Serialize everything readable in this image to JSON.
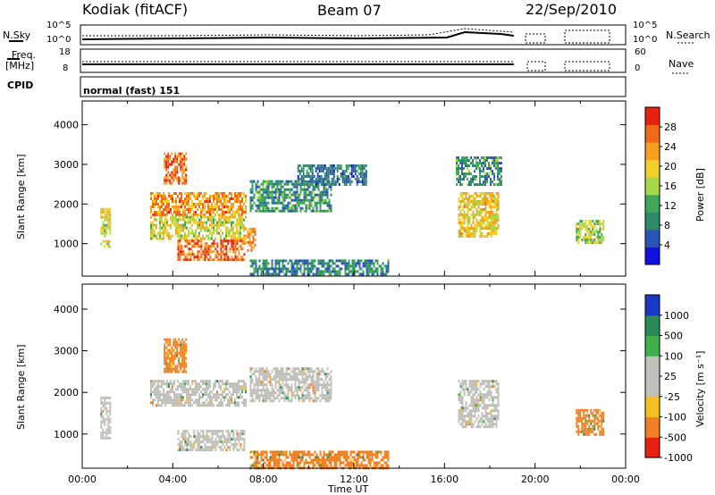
{
  "header": {
    "title": "Kodiak (fitACF)",
    "beam": "Beam 07",
    "date": "22/Sep/2010"
  },
  "top_panels": {
    "nsky_label": "N.Sky",
    "nsearch_label": "N.Search",
    "noise_ticks_left": [
      "10^5",
      "10^0"
    ],
    "noise_ticks_right": [
      "10^5",
      "10^0"
    ],
    "freq_label": "Freq.",
    "freq_unit": "[MHz]",
    "freq_ticks": [
      "18",
      "8"
    ],
    "nave_label": "Nave",
    "nave_ticks": [
      "60",
      "0"
    ],
    "cpid_label": "CPID",
    "cpid_value": "normal (fast) 151"
  },
  "chart_data": [
    {
      "type": "heatmap",
      "name": "power-panel",
      "ylabel": "Slant Range [km]",
      "yticks": [
        "4000",
        "3000",
        "2000",
        "1000"
      ],
      "ylim": [
        180,
        4600
      ],
      "xlabel": "",
      "xlim": [
        0,
        24
      ],
      "colorbar": {
        "label": "Power [dB]",
        "ticks": [
          "28",
          "24",
          "20",
          "16",
          "12",
          "8",
          "4"
        ],
        "range": [
          0,
          32
        ],
        "colors": [
          "#1010e0",
          "#2a55b8",
          "#2f8a6a",
          "#3ea85a",
          "#a8d848",
          "#f2d028",
          "#f7a020",
          "#f06a18",
          "#e82010"
        ]
      },
      "regions": [
        {
          "t0": 0.8,
          "t1": 1.2,
          "r0": 900,
          "r1": 1900,
          "value": 18
        },
        {
          "t0": 3.6,
          "t1": 4.6,
          "r0": 2500,
          "r1": 3300,
          "value": 27
        },
        {
          "t0": 3.0,
          "t1": 7.2,
          "r0": 1700,
          "r1": 2300,
          "value": 24
        },
        {
          "t0": 3.0,
          "t1": 7.2,
          "r0": 1100,
          "r1": 1700,
          "value": 18
        },
        {
          "t0": 4.2,
          "t1": 7.2,
          "r0": 600,
          "r1": 1100,
          "value": 26
        },
        {
          "t0": 7.2,
          "t1": 7.6,
          "r0": 800,
          "r1": 1400,
          "value": 24
        },
        {
          "t0": 7.4,
          "t1": 11.0,
          "r0": 1800,
          "r1": 2600,
          "value": 10
        },
        {
          "t0": 9.5,
          "t1": 12.5,
          "r0": 2500,
          "r1": 3000,
          "value": 8
        },
        {
          "t0": 7.4,
          "t1": 13.5,
          "r0": 200,
          "r1": 600,
          "value": 9
        },
        {
          "t0": 16.6,
          "t1": 18.4,
          "r0": 1200,
          "r1": 2300,
          "value": 20
        },
        {
          "t0": 16.5,
          "t1": 18.5,
          "r0": 2500,
          "r1": 3200,
          "value": 10
        },
        {
          "t0": 21.8,
          "t1": 23.0,
          "r0": 1000,
          "r1": 1600,
          "value": 16
        }
      ]
    },
    {
      "type": "heatmap",
      "name": "velocity-panel",
      "ylabel": "Slant Range [km]",
      "yticks": [
        "4000",
        "3000",
        "2000",
        "1000"
      ],
      "ylim": [
        180,
        4600
      ],
      "xlabel": "Time UT",
      "xticks": [
        "00:00",
        "04:00",
        "08:00",
        "12:00",
        "16:00",
        "20:00",
        "00:00"
      ],
      "xlim": [
        0,
        24
      ],
      "colorbar": {
        "label": "Velocity [m s⁻¹]",
        "ticks": [
          "1000",
          "500",
          "100",
          "25",
          "-25",
          "-100",
          "-500",
          "-1000"
        ],
        "colors": [
          "#1838c8",
          "#2a8a5a",
          "#3fb04a",
          "#c0c0b8",
          "#c0c0b8",
          "#f3c020",
          "#f08020",
          "#e82010"
        ]
      },
      "regions": [
        {
          "t0": 0.8,
          "t1": 1.2,
          "r0": 900,
          "r1": 1900,
          "value": 0
        },
        {
          "t0": 3.6,
          "t1": 4.6,
          "r0": 2500,
          "r1": 3300,
          "value": -200
        },
        {
          "t0": 3.0,
          "t1": 7.2,
          "r0": 1700,
          "r1": 2300,
          "value": 0
        },
        {
          "t0": 4.2,
          "t1": 7.2,
          "r0": 600,
          "r1": 1100,
          "value": 0
        },
        {
          "t0": 7.4,
          "t1": 11.0,
          "r0": 1800,
          "r1": 2600,
          "value": 0
        },
        {
          "t0": 7.4,
          "t1": 13.5,
          "r0": 200,
          "r1": 600,
          "value": -150
        },
        {
          "t0": 16.6,
          "t1": 18.4,
          "r0": 1200,
          "r1": 2300,
          "value": 0
        },
        {
          "t0": 21.8,
          "t1": 23.0,
          "r0": 1000,
          "r1": 1600,
          "value": -100
        }
      ]
    }
  ]
}
